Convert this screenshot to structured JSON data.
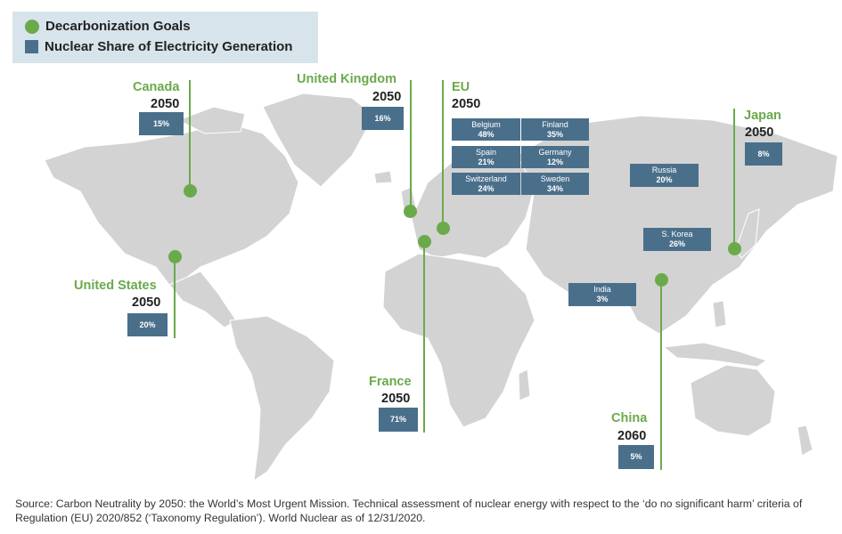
{
  "legend": {
    "goals_label": "Decarbonization Goals",
    "nuclear_label": "Nuclear Share of Electricity Generation"
  },
  "colors": {
    "goal_green": "#6aaa4b",
    "box_blue": "#4a6f8b",
    "land": "#d3d3d3",
    "legend_bg": "#d7e4ec"
  },
  "goals": {
    "canada": {
      "name": "Canada",
      "year": "2050",
      "share": "15%"
    },
    "us": {
      "name": "United States",
      "year": "2050",
      "share": "20%"
    },
    "uk": {
      "name": "United Kingdom",
      "year": "2050",
      "share": "16%"
    },
    "eu": {
      "name": "EU",
      "year": "2050"
    },
    "france": {
      "name": "France",
      "year": "2050",
      "share": "71%"
    },
    "japan": {
      "name": "Japan",
      "year": "2050",
      "share": "8%"
    },
    "china": {
      "name": "China",
      "year": "2060",
      "share": "5%"
    }
  },
  "shares": {
    "belgium": {
      "name": "Belgium",
      "value": "48%"
    },
    "finland": {
      "name": "Finland",
      "value": "35%"
    },
    "spain": {
      "name": "Spain",
      "value": "21%"
    },
    "germany": {
      "name": "Germany",
      "value": "12%"
    },
    "switzerland": {
      "name": "Switzerland",
      "value": "24%"
    },
    "sweden": {
      "name": "Sweden",
      "value": "34%"
    },
    "russia": {
      "name": "Russia",
      "value": "20%"
    },
    "skorea": {
      "name": "S. Korea",
      "value": "26%"
    },
    "india": {
      "name": "India",
      "value": "3%"
    }
  },
  "source": "Source: Carbon Neutrality by 2050: the World’s Most Urgent Mission. Technical assessment of nuclear energy with respect to the ‘do no significant harm’ criteria of Regulation (EU) 2020/852 (‘Taxonomy Regulation’). World Nuclear as of 12/31/2020."
}
